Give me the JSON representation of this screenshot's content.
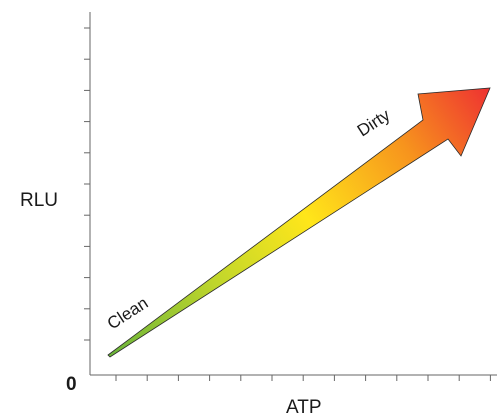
{
  "diagram": {
    "y_axis_label": "RLU",
    "x_axis_label": "ATP",
    "origin_label": "0",
    "arrow_start_label": "Clean",
    "arrow_end_label": "Dirty",
    "gradient_colors": [
      "#6ab43a",
      "#c6d82a",
      "#ffe61a",
      "#f7941d",
      "#ee3231"
    ],
    "axis_color": "#666666",
    "arrow_outline_color": "#2b2b2b"
  }
}
